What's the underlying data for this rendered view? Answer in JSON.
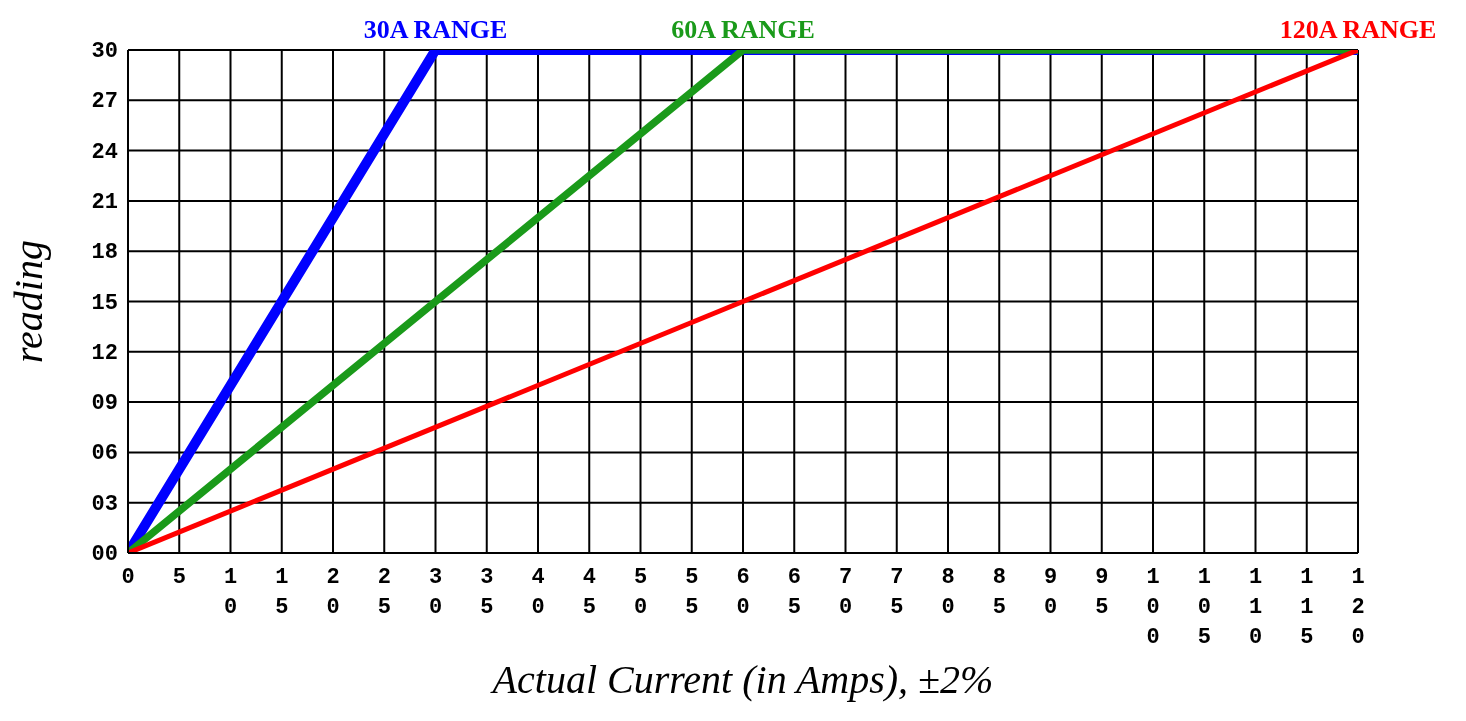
{
  "chart_data": {
    "type": "line",
    "xlabel": "Actual Current (in Amps), ±2%",
    "ylabel": "reading",
    "series": [
      {
        "name": "30A RANGE",
        "color": "#0000ff",
        "x": [
          0,
          30,
          120
        ],
        "values": [
          0,
          30,
          30
        ]
      },
      {
        "name": "60A RANGE",
        "color": "#1a9a1a",
        "x": [
          0,
          60,
          120
        ],
        "values": [
          0,
          30,
          30
        ]
      },
      {
        "name": "120A RANGE",
        "color": "#ff0000",
        "x": [
          0,
          120
        ],
        "values": [
          0,
          30
        ]
      }
    ],
    "xlim": [
      0,
      120
    ],
    "xticks": [
      0,
      5,
      10,
      15,
      20,
      25,
      30,
      35,
      40,
      45,
      50,
      55,
      60,
      65,
      70,
      75,
      80,
      85,
      90,
      95,
      100,
      105,
      110,
      115,
      120
    ],
    "ylim": [
      0,
      30
    ],
    "yticks": [
      {
        "value": 0,
        "label": "00"
      },
      {
        "value": 3,
        "label": "03"
      },
      {
        "value": 6,
        "label": "06"
      },
      {
        "value": 9,
        "label": "09"
      },
      12,
      15,
      18,
      21,
      24,
      27,
      30
    ],
    "grid": true,
    "marker": "none",
    "line_style": "solid"
  }
}
